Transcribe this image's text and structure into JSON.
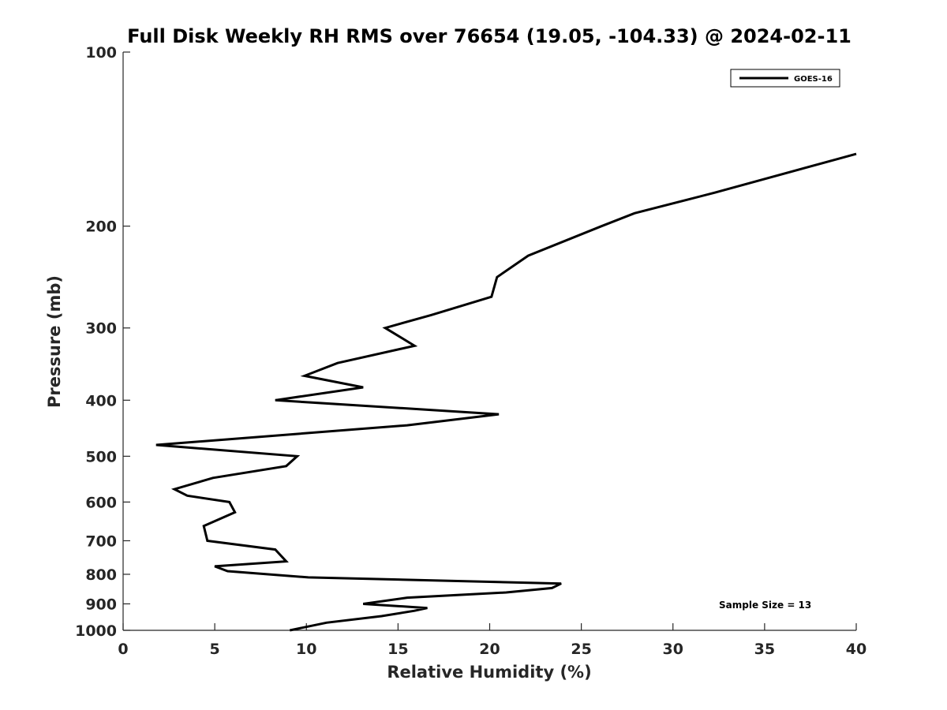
{
  "chart_data": {
    "type": "line",
    "title": "Full Disk Weekly RH RMS over 76654 (19.05, -104.33) @ 2024-02-11",
    "xlabel": "Relative Humidity (%)",
    "ylabel": "Pressure (mb)",
    "xlim": [
      0,
      40
    ],
    "ylim": [
      100,
      1000
    ],
    "yscale": "log-reversed",
    "xticks": [
      0,
      5,
      10,
      15,
      20,
      25,
      30,
      35,
      40
    ],
    "yticks": [
      100,
      200,
      300,
      400,
      500,
      600,
      700,
      800,
      900,
      1000
    ],
    "legend_position": "top-right",
    "annotation": "Sample Size = 13",
    "series": [
      {
        "name": "GOES-16",
        "color": "#000000",
        "points": [
          [
            40.0,
            150
          ],
          [
            39.0,
            153
          ],
          [
            32.3,
            175
          ],
          [
            27.9,
            190
          ],
          [
            26.1,
            200
          ],
          [
            22.1,
            225
          ],
          [
            20.4,
            245
          ],
          [
            20.1,
            265
          ],
          [
            16.8,
            285
          ],
          [
            14.3,
            300
          ],
          [
            15.9,
            322
          ],
          [
            11.7,
            345
          ],
          [
            9.9,
            363
          ],
          [
            13.1,
            380
          ],
          [
            8.3,
            400
          ],
          [
            20.5,
            423
          ],
          [
            15.5,
            442
          ],
          [
            1.8,
            478
          ],
          [
            9.5,
            500
          ],
          [
            8.9,
            520
          ],
          [
            4.9,
            545
          ],
          [
            2.8,
            570
          ],
          [
            3.5,
            585
          ],
          [
            5.8,
            600
          ],
          [
            6.1,
            625
          ],
          [
            4.4,
            660
          ],
          [
            4.6,
            700
          ],
          [
            8.3,
            725
          ],
          [
            8.9,
            760
          ],
          [
            5.0,
            775
          ],
          [
            5.7,
            790
          ],
          [
            10.1,
            810
          ],
          [
            23.9,
            830
          ],
          [
            23.4,
            845
          ],
          [
            20.9,
            860
          ],
          [
            15.5,
            878
          ],
          [
            13.1,
            900
          ],
          [
            16.6,
            915
          ],
          [
            15.9,
            925
          ],
          [
            14.1,
            945
          ],
          [
            11.1,
            970
          ],
          [
            9.1,
            1000
          ]
        ]
      }
    ]
  }
}
